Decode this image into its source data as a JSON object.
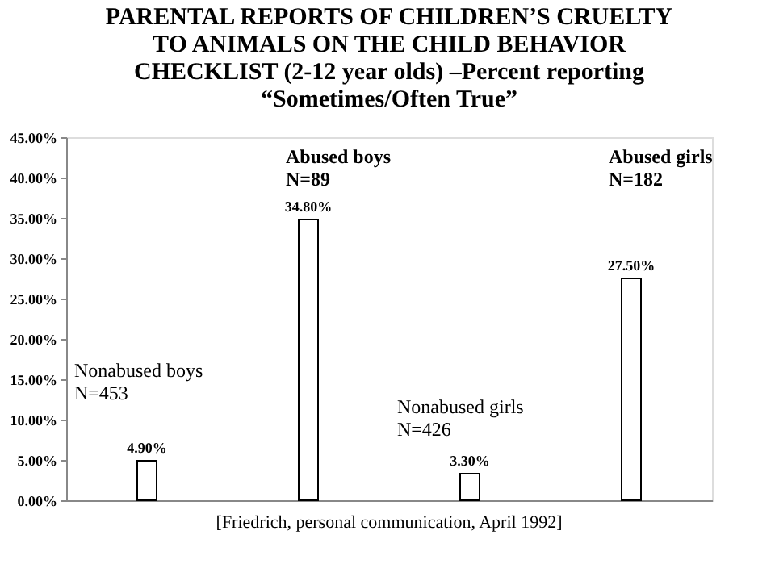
{
  "chart_data": {
    "type": "bar",
    "title": "PARENTAL REPORTS OF CHILDREN’S CRUELTY\nTO ANIMALS ON THE CHILD BEHAVIOR\nCHECKLIST (2-12 year olds) –Percent reporting\n“Sometimes/Often True”",
    "categories": [
      null,
      null,
      null,
      null
    ],
    "values": [
      4.9,
      34.8,
      3.3,
      27.5
    ],
    "value_labels": [
      "4.90%",
      "34.80%",
      "3.30%",
      "27.50%"
    ],
    "color": "#ffffff",
    "ylim": [
      0,
      45
    ],
    "yticks": [
      {
        "value": 0,
        "label": "0.00%"
      },
      {
        "value": 5,
        "label": "5.00%"
      },
      {
        "value": 10,
        "label": "10.00%"
      },
      {
        "value": 15,
        "label": "15.00%"
      },
      {
        "value": 20,
        "label": "20.00%"
      },
      {
        "value": 25,
        "label": "25.00%"
      },
      {
        "value": 30,
        "label": "30.00%"
      },
      {
        "value": 35,
        "label": "35.00%"
      },
      {
        "value": 40,
        "label": "40.00%"
      },
      {
        "value": 45,
        "label": "45.00%"
      }
    ],
    "tick_labels": "y",
    "annotations": [
      "Nonabused boys\nN=453",
      "Abused boys\nN=89",
      "Nonabused girls\nN=426",
      "Abused girls\nN=182",
      "[Friedrich, personal communication, April 1992]"
    ]
  }
}
